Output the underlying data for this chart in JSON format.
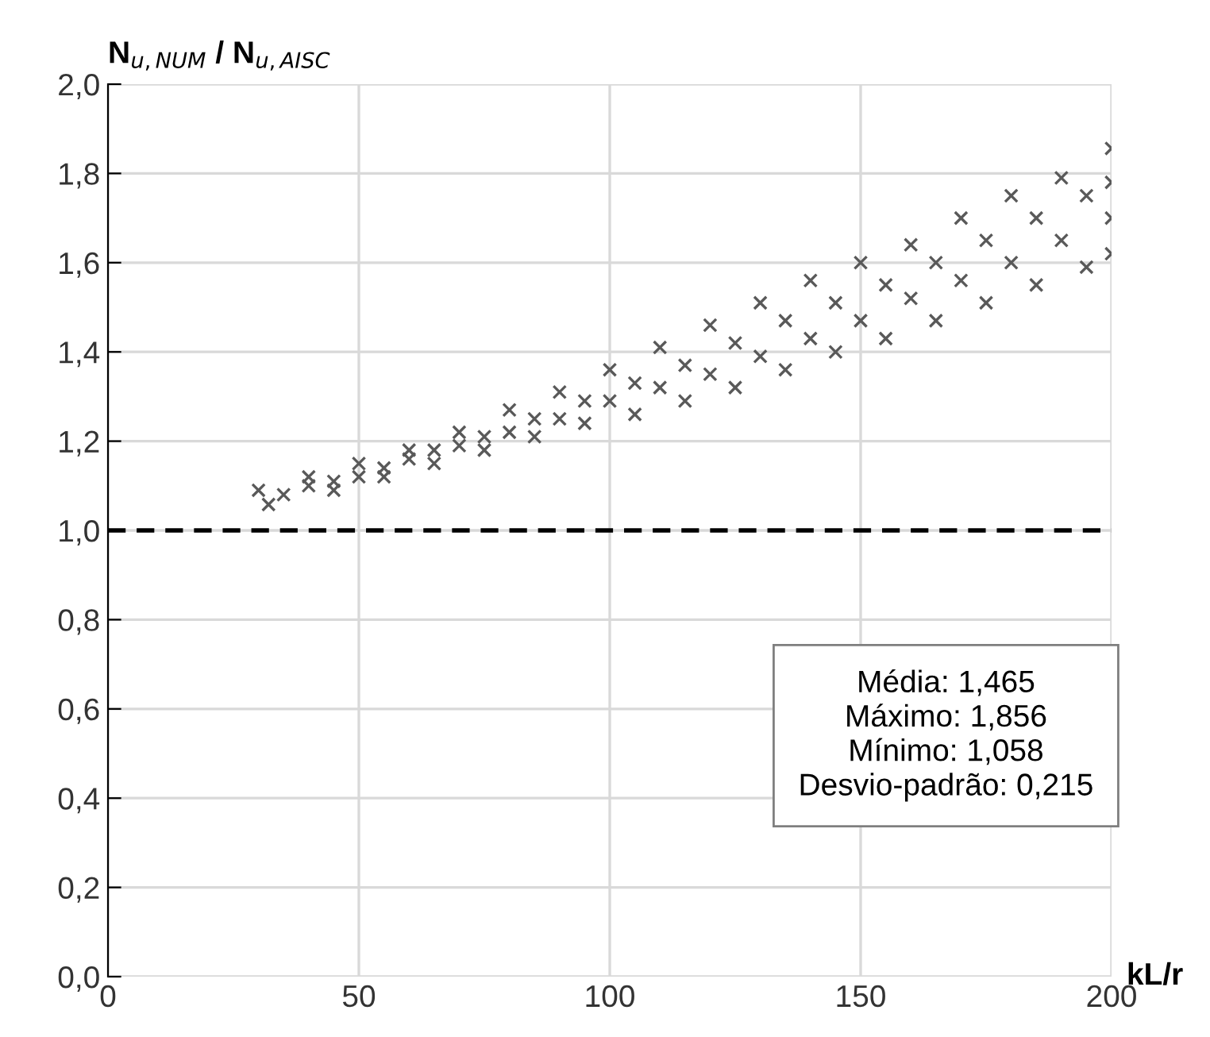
{
  "chart_data": {
    "type": "scatter",
    "ylabel": "N$_{u,NUM}$ / N$_{u,AISC}$",
    "xlabel": "kL/r",
    "xlim": [
      0,
      200
    ],
    "xticks": [
      0,
      50,
      100,
      150,
      200
    ],
    "ylim": [
      0,
      2
    ],
    "yticks": [
      {
        "value": 0,
        "label": "0,0"
      },
      {
        "value": 0.2,
        "label": "0,2"
      },
      {
        "value": 0.4,
        "label": "0,4"
      },
      {
        "value": 0.6,
        "label": "0,6"
      },
      {
        "value": 0.8,
        "label": "0,8"
      },
      {
        "value": 1.0,
        "label": "1,0"
      },
      {
        "value": 1.2,
        "label": "1,2"
      },
      {
        "value": 1.4,
        "label": "1,4"
      },
      {
        "value": 1.6,
        "label": "1,6"
      },
      {
        "value": 1.8,
        "label": "1,8"
      },
      {
        "value": 2.0,
        "label": "2,0"
      }
    ],
    "grid": true,
    "marker": "cross",
    "legend": false,
    "series": [
      {
        "color": "#595959",
        "x": [
          30,
          40,
          50,
          60,
          70,
          80,
          90,
          100,
          110,
          120,
          130,
          140,
          150,
          160,
          170,
          180,
          190,
          200,
          35,
          45,
          55,
          65,
          75,
          85,
          95,
          105,
          115,
          125,
          135,
          145,
          155,
          165,
          175,
          185,
          195,
          200,
          40,
          50,
          60,
          70,
          80,
          90,
          100,
          110,
          120,
          130,
          140,
          150,
          160,
          170,
          180,
          190,
          200,
          32,
          45,
          55,
          65,
          75,
          85,
          95,
          105,
          115,
          125,
          135,
          145,
          155,
          165,
          175,
          185,
          195,
          200
        ],
        "values": [
          1.09,
          1.12,
          1.15,
          1.18,
          1.22,
          1.27,
          1.31,
          1.36,
          1.41,
          1.46,
          1.51,
          1.56,
          1.6,
          1.64,
          1.7,
          1.75,
          1.79,
          1.856,
          1.08,
          1.11,
          1.14,
          1.18,
          1.21,
          1.25,
          1.29,
          1.33,
          1.37,
          1.42,
          1.47,
          1.51,
          1.55,
          1.6,
          1.65,
          1.7,
          1.75,
          1.78,
          1.1,
          1.12,
          1.16,
          1.19,
          1.22,
          1.25,
          1.29,
          1.32,
          1.35,
          1.39,
          1.43,
          1.47,
          1.52,
          1.56,
          1.6,
          1.65,
          1.7,
          1.058,
          1.09,
          1.12,
          1.15,
          1.18,
          1.21,
          1.24,
          1.26,
          1.29,
          1.32,
          1.36,
          1.4,
          1.43,
          1.47,
          1.51,
          1.55,
          1.59,
          1.62
        ]
      }
    ],
    "ref_lines": [
      {
        "axis": "y",
        "value": 1.0,
        "color": "#000000",
        "line_style": "dashed"
      }
    ],
    "annotations": [
      "Média: 1,465",
      "Máximo: 1,856",
      "Mínimo: 1,058",
      "Desvio-padrão: 0,215"
    ]
  }
}
